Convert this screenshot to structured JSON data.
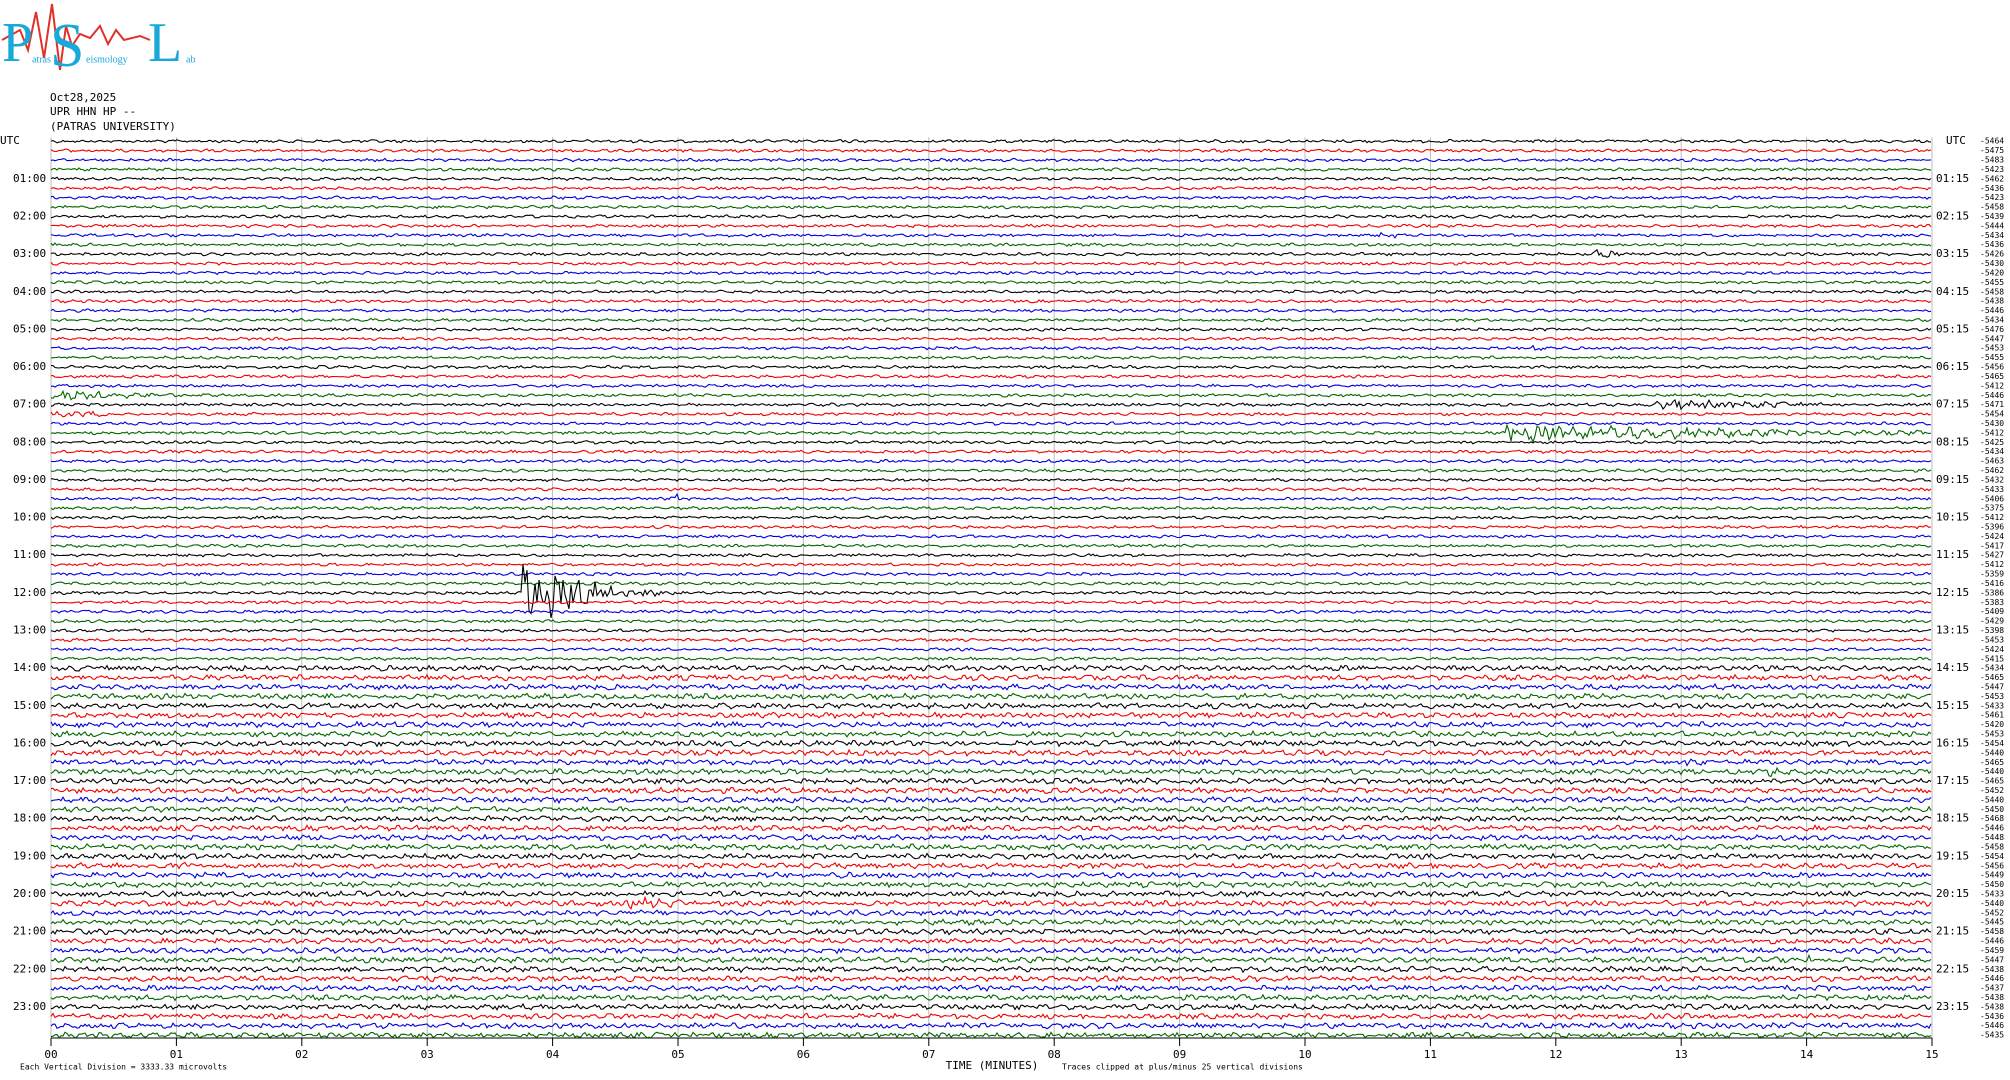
{
  "logo": {
    "letters": [
      "P",
      "S",
      "L"
    ],
    "words": [
      "atras",
      "eismology",
      "ab"
    ]
  },
  "header": {
    "date": "Oct28,2025",
    "station": "UPR HHN HP --",
    "institution": "(PATRAS UNIVERSITY)"
  },
  "left_axis": {
    "title": "UTC",
    "labels": [
      "01:00",
      "02:00",
      "03:00",
      "04:00",
      "05:00",
      "06:00",
      "07:00",
      "08:00",
      "09:00",
      "10:00",
      "11:00",
      "12:00",
      "13:00",
      "14:00",
      "15:00",
      "16:00",
      "17:00",
      "18:00",
      "19:00",
      "20:00",
      "21:00",
      "22:00",
      "23:00"
    ]
  },
  "right_axis": {
    "title": "UTC",
    "labels": [
      "01:15",
      "02:15",
      "03:15",
      "04:15",
      "05:15",
      "06:15",
      "07:15",
      "08:15",
      "09:15",
      "10:15",
      "11:15",
      "12:15",
      "13:15",
      "14:15",
      "15:15",
      "16:15",
      "17:15",
      "18:15",
      "19:15",
      "20:15",
      "21:15",
      "22:15",
      "23:15"
    ]
  },
  "trace_offsets": [
    "-5464",
    "-5475",
    "-5483",
    "-5423",
    "-5462",
    "-5436",
    "-5423",
    "-5458",
    "-5439",
    "-5444",
    "-5434",
    "-5436",
    "-5426",
    "-5430",
    "-5420",
    "-5455",
    "-5458",
    "-5438",
    "-5446",
    "-5434",
    "-5476",
    "-5447",
    "-5453",
    "-5455",
    "-5456",
    "-5465",
    "-5412",
    "-5446",
    "-5471",
    "-5454",
    "-5430",
    "-5412",
    "-5425",
    "-5434",
    "-5463",
    "-5462",
    "-5432",
    "-5433",
    "-5406",
    "-5375",
    "-5412",
    "-5396",
    "-5424",
    "-5417",
    "-5427",
    "-5412",
    "-5359",
    "-5416",
    "-5386",
    "-5383",
    "-5409",
    "-5429",
    "-5398",
    "-5453",
    "-5424",
    "-5415",
    "-5434",
    "-5465",
    "-5447",
    "-5453",
    "-5433",
    "-5461",
    "-5420",
    "-5453",
    "-5454",
    "-5440",
    "-5465",
    "-5440",
    "-5465",
    "-5452",
    "-5440",
    "-5450",
    "-5468",
    "-5446",
    "-5448",
    "-5458",
    "-5454",
    "-5456",
    "-5449",
    "-5450",
    "-5433",
    "-5440",
    "-5452",
    "-5445",
    "-5458",
    "-5446",
    "-5459",
    "-5447",
    "-5438",
    "-5446",
    "-5437",
    "-5438",
    "-5438",
    "-5436",
    "-5446",
    "-5435"
  ],
  "x_axis": {
    "title": "TIME (MINUTES)",
    "labels": [
      "00",
      "01",
      "02",
      "03",
      "04",
      "05",
      "06",
      "07",
      "08",
      "09",
      "10",
      "11",
      "12",
      "13",
      "14",
      "15"
    ]
  },
  "footer": {
    "scale_note": "Each Vertical Division = 3333.33 microvolts",
    "clip_note": "Traces clipped at plus/minus 25 vertical divisions"
  }
}
